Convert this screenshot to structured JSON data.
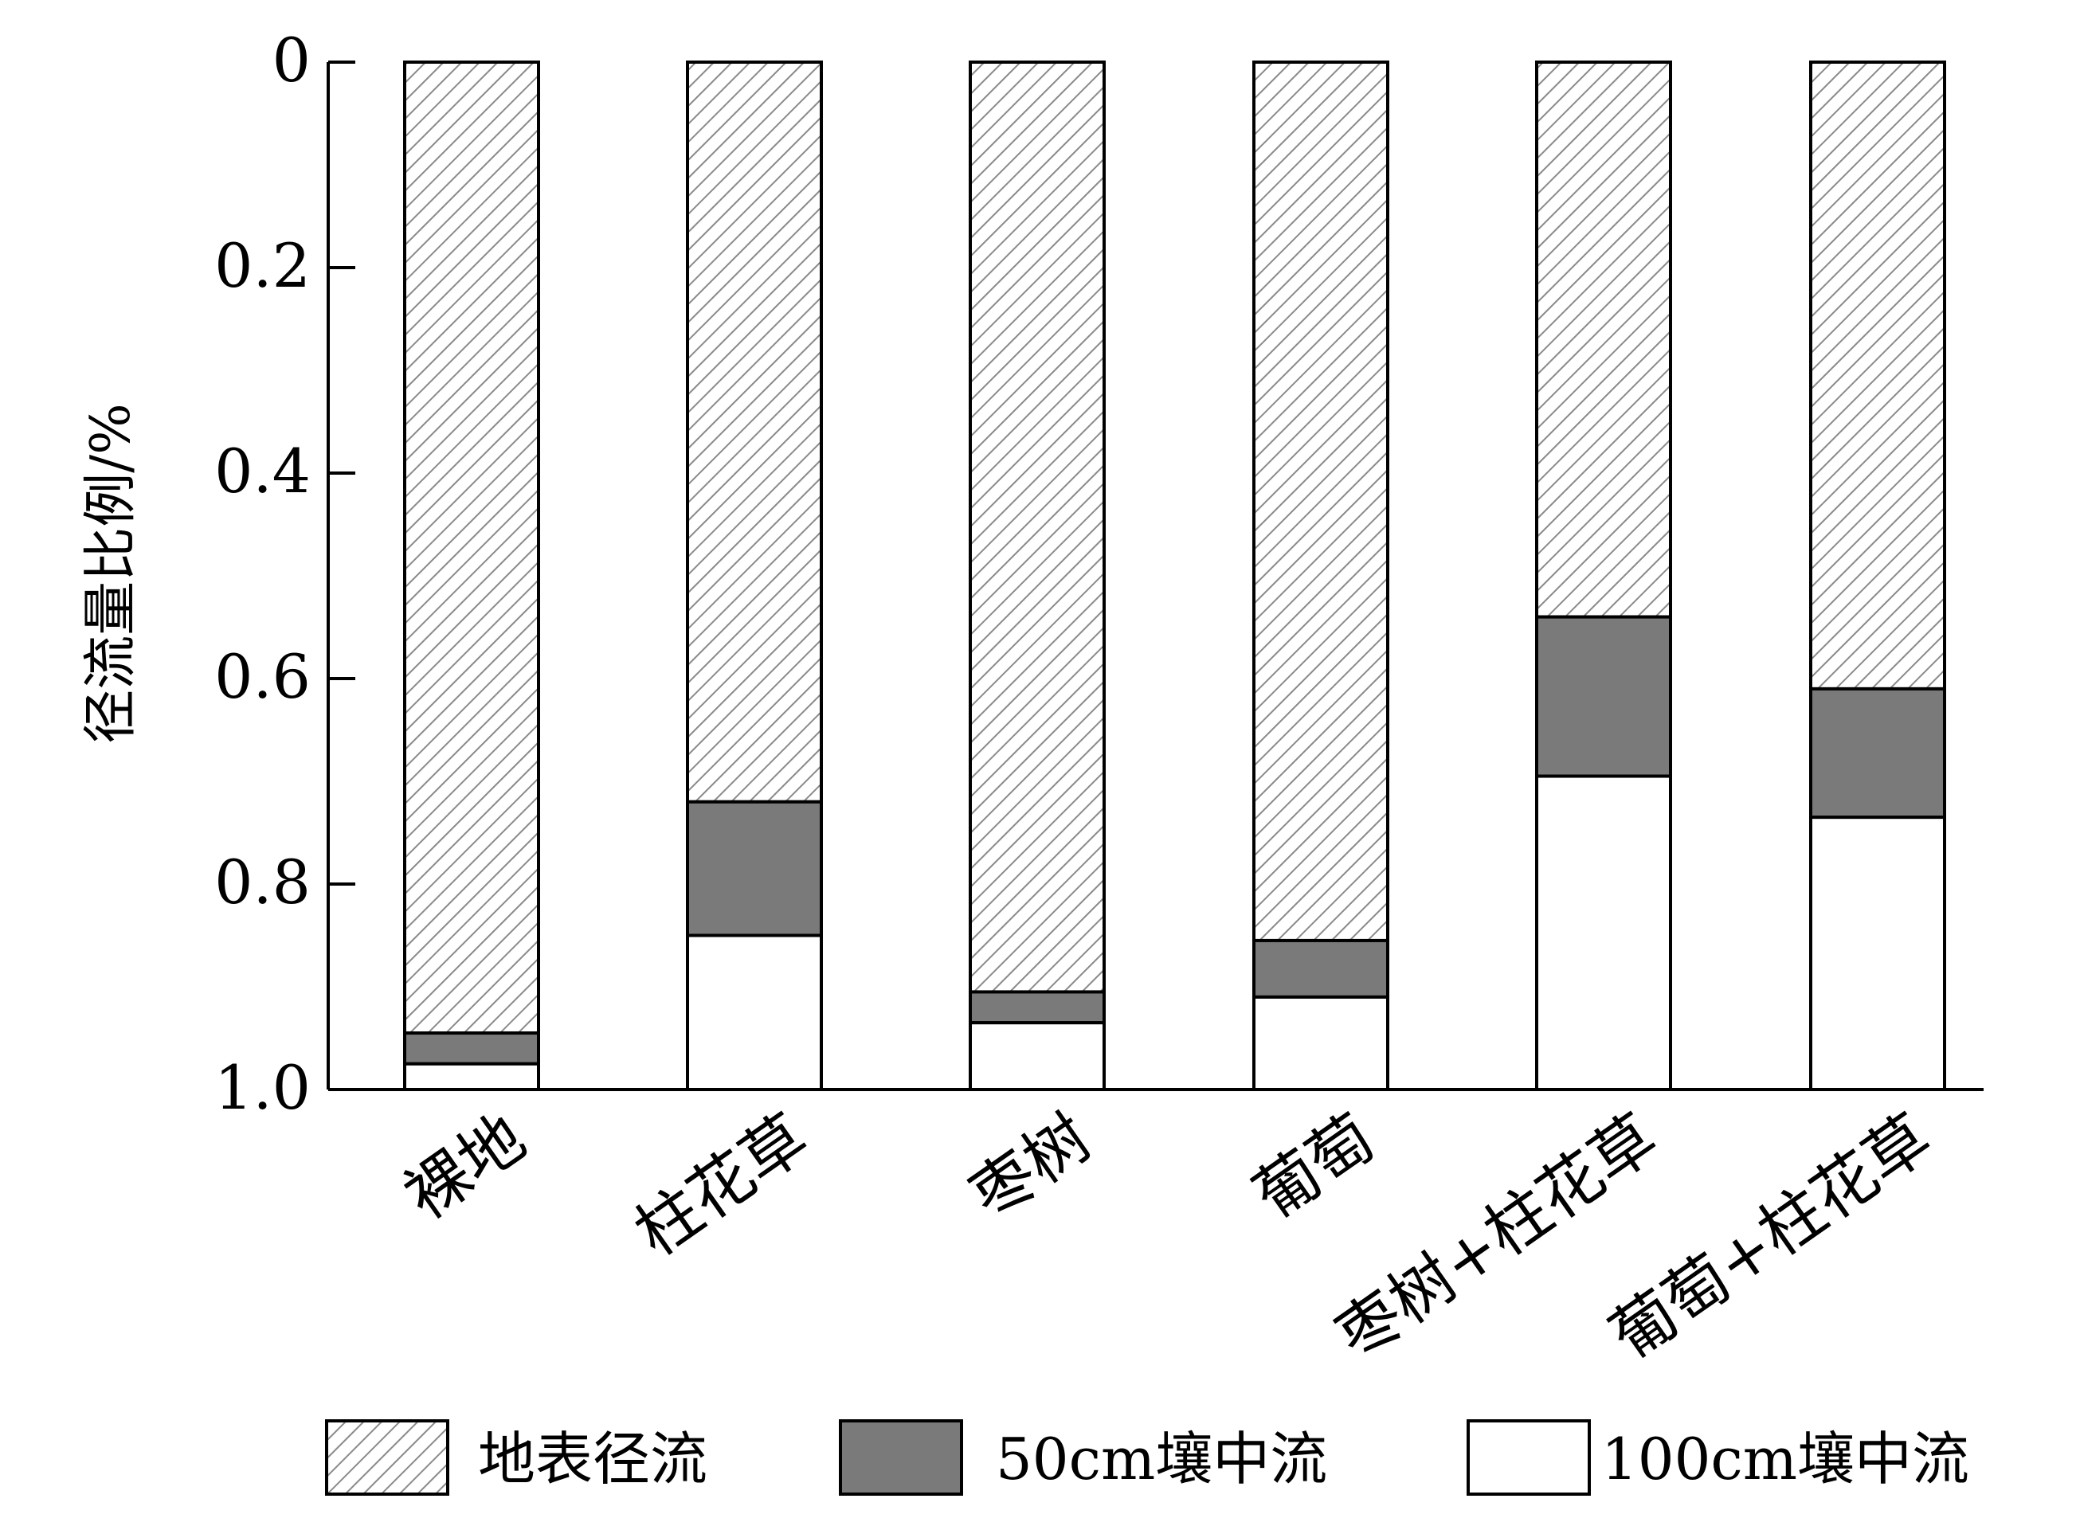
{
  "chart_data": {
    "type": "bar",
    "stacked": true,
    "orientation": "vertical",
    "y_axis_inverted": true,
    "ylabel": "径流量比例/%",
    "ylim": [
      0,
      1.0
    ],
    "yticks": [
      "0",
      "0.2",
      "0.4",
      "0.6",
      "0.8",
      "1.0"
    ],
    "categories": [
      "裸地",
      "柱花草",
      "枣树",
      "葡萄",
      "枣树+柱花草",
      "葡萄+柱花草"
    ],
    "series": [
      {
        "name": "地表径流",
        "fill": "hatch",
        "values": [
          0.945,
          0.72,
          0.905,
          0.855,
          0.54,
          0.61
        ]
      },
      {
        "name": "50cm壤中流",
        "fill": "#7a7a7a",
        "values": [
          0.03,
          0.13,
          0.03,
          0.055,
          0.155,
          0.125
        ]
      },
      {
        "name": "100cm壤中流",
        "fill": "#ffffff",
        "values": [
          0.025,
          0.15,
          0.065,
          0.09,
          0.305,
          0.265
        ]
      }
    ],
    "grid": false,
    "legend_position": "bottom"
  }
}
